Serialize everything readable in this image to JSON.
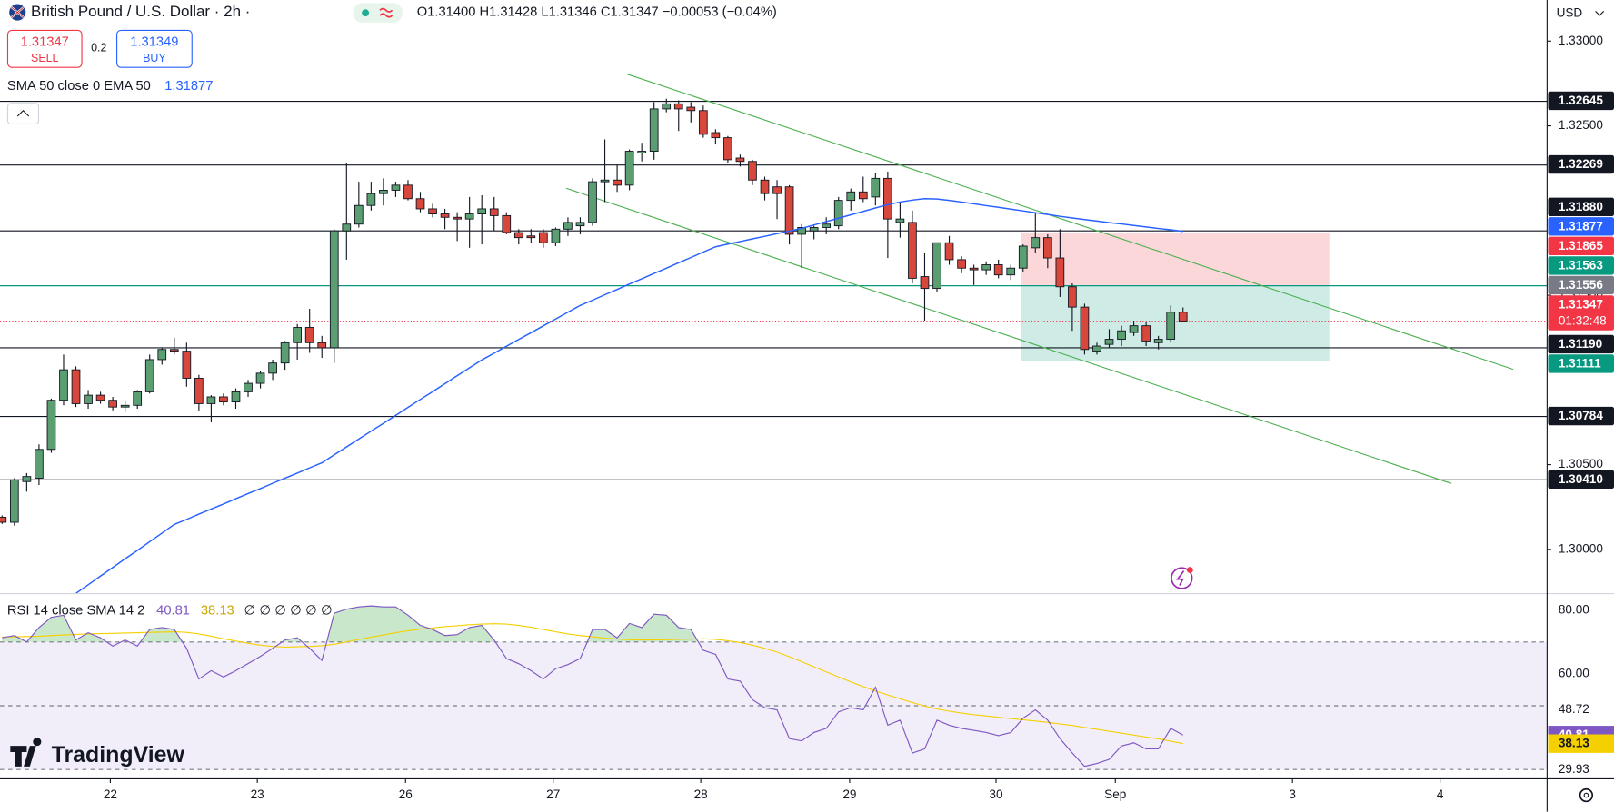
{
  "header": {
    "symbol": "British Pound / U.S. Dollar · 2h ·",
    "ohlc": "O1.31400 H1.31428 L1.31346 C1.31347 −0.00053 (−0.04%)",
    "sell_label": "SELL",
    "spread": 0.2,
    "buy_price": 1.31349,
    "buy_label": "BUY",
    "currency": "USD",
    "indicator": "SMA 50 close 0 EMA 50",
    "rsi_label": "RSI 14 close SMA 14 2",
    "rsi_extra": "∅ ∅ ∅ ∅ ∅ ∅",
    "countdown": "01:32:48",
    "logo": "TradingView"
  },
  "chart_data": {
    "type": "candlestick",
    "up_color": "#5b9e72",
    "down_color": "#d8473b",
    "grid": false,
    "xlim": [
      -0.17,
      125.6
    ],
    "xticks": [
      {
        "value": 8.8,
        "label": "22"
      },
      {
        "value": 20.75,
        "label": "23"
      },
      {
        "value": 32.8,
        "label": "26"
      },
      {
        "value": 44.8,
        "label": "27"
      },
      {
        "value": 56.8,
        "label": "28"
      },
      {
        "value": 68.9,
        "label": "29"
      },
      {
        "value": 80.8,
        "label": "30"
      },
      {
        "value": 90.5,
        "label": "Sep"
      },
      {
        "value": 104.9,
        "label": "3"
      },
      {
        "value": 116.9,
        "label": "4"
      }
    ],
    "ylim": [
      1.297389,
      1.332429
    ],
    "yticks": [
      {
        "value": 1.33,
        "label": "1.33000"
      },
      {
        "value": 1.325,
        "label": "1.32500"
      },
      {
        "value": 1.315,
        "label": "1.31500"
      },
      {
        "value": 1.305,
        "label": "1.30500"
      },
      {
        "value": 1.3,
        "label": "1.30000"
      }
    ],
    "ohlc": [
      [
        1.3019,
        1.302,
        1.3015,
        1.3016
      ],
      [
        1.3016,
        1.3042,
        1.3014,
        1.3041
      ],
      [
        1.304,
        1.3045,
        1.3034,
        1.3043
      ],
      [
        1.3042,
        1.3062,
        1.3038,
        1.3059
      ],
      [
        1.3059,
        1.3089,
        1.3057,
        1.3088
      ],
      [
        1.3088,
        1.3115,
        1.3085,
        1.3106
      ],
      [
        1.3106,
        1.3108,
        1.3084,
        1.3086
      ],
      [
        1.3086,
        1.3094,
        1.3083,
        1.3091
      ],
      [
        1.3091,
        1.3093,
        1.3086,
        1.3088
      ],
      [
        1.3088,
        1.309,
        1.3082,
        1.3084
      ],
      [
        1.3084,
        1.3088,
        1.3081,
        1.3085
      ],
      [
        1.3085,
        1.3094,
        1.3083,
        1.3093
      ],
      [
        1.3093,
        1.3115,
        1.3092,
        1.3112
      ],
      [
        1.3112,
        1.3119,
        1.3109,
        1.3118
      ],
      [
        1.3118,
        1.3125,
        1.3115,
        1.3117
      ],
      [
        1.3117,
        1.3122,
        1.3096,
        1.3101
      ],
      [
        1.3101,
        1.3103,
        1.3082,
        1.3086
      ],
      [
        1.3086,
        1.3091,
        1.3075,
        1.309
      ],
      [
        1.309,
        1.3092,
        1.3085,
        1.3087
      ],
      [
        1.3087,
        1.3095,
        1.3083,
        1.3093
      ],
      [
        1.3093,
        1.31,
        1.309,
        1.3098
      ],
      [
        1.3098,
        1.3105,
        1.3095,
        1.3104
      ],
      [
        1.3104,
        1.3112,
        1.31,
        1.311
      ],
      [
        1.311,
        1.3123,
        1.3106,
        1.3122
      ],
      [
        1.3122,
        1.3133,
        1.3112,
        1.3131
      ],
      [
        1.3131,
        1.3142,
        1.3116,
        1.3122
      ],
      [
        1.3122,
        1.3126,
        1.3113,
        1.3119
      ],
      [
        1.3119,
        1.3189,
        1.311,
        1.3188
      ],
      [
        1.3188,
        1.3228,
        1.3171,
        1.3192
      ],
      [
        1.3192,
        1.3217,
        1.319,
        1.3203
      ],
      [
        1.3203,
        1.3217,
        1.32,
        1.321
      ],
      [
        1.321,
        1.3219,
        1.3203,
        1.3212
      ],
      [
        1.3212,
        1.3217,
        1.3208,
        1.3215
      ],
      [
        1.3215,
        1.3218,
        1.3206,
        1.3207
      ],
      [
        1.3207,
        1.3211,
        1.3199,
        1.3201
      ],
      [
        1.3201,
        1.3204,
        1.3196,
        1.3198
      ],
      [
        1.3198,
        1.3201,
        1.3189,
        1.3196
      ],
      [
        1.3196,
        1.3199,
        1.3182,
        1.3195
      ],
      [
        1.3195,
        1.3208,
        1.3178,
        1.3198
      ],
      [
        1.3198,
        1.3209,
        1.318,
        1.3201
      ],
      [
        1.3201,
        1.3208,
        1.3188,
        1.3197
      ],
      [
        1.3197,
        1.3199,
        1.3186,
        1.3187
      ],
      [
        1.3187,
        1.3189,
        1.318,
        1.3184
      ],
      [
        1.3185,
        1.3189,
        1.3181,
        1.3184
      ],
      [
        1.3187,
        1.3189,
        1.3178,
        1.3181
      ],
      [
        1.3181,
        1.319,
        1.3179,
        1.3189
      ],
      [
        1.3189,
        1.3196,
        1.3185,
        1.3193
      ],
      [
        1.3191,
        1.3196,
        1.3186,
        1.3193
      ],
      [
        1.3193,
        1.3219,
        1.3191,
        1.3217
      ],
      [
        1.3217,
        1.3242,
        1.3205,
        1.3218
      ],
      [
        1.3218,
        1.3227,
        1.3211,
        1.3215
      ],
      [
        1.3215,
        1.3236,
        1.3212,
        1.3235
      ],
      [
        1.3234,
        1.324,
        1.3229,
        1.3235
      ],
      [
        1.3235,
        1.3264,
        1.323,
        1.326
      ],
      [
        1.326,
        1.3266,
        1.3258,
        1.3263
      ],
      [
        1.3263,
        1.3265,
        1.3247,
        1.326
      ],
      [
        1.3261,
        1.3264,
        1.3252,
        1.3259
      ],
      [
        1.3259,
        1.3262,
        1.3243,
        1.3245
      ],
      [
        1.3246,
        1.3248,
        1.3239,
        1.3243
      ],
      [
        1.3243,
        1.3244,
        1.3228,
        1.323
      ],
      [
        1.3231,
        1.3233,
        1.3226,
        1.3229
      ],
      [
        1.3229,
        1.323,
        1.3215,
        1.3218
      ],
      [
        1.3218,
        1.322,
        1.3206,
        1.321
      ],
      [
        1.3214,
        1.3218,
        1.3195,
        1.321
      ],
      [
        1.3214,
        1.3215,
        1.318,
        1.3186
      ],
      [
        1.3186,
        1.3192,
        1.3166,
        1.319
      ],
      [
        1.3188,
        1.3191,
        1.3183,
        1.319
      ],
      [
        1.319,
        1.3196,
        1.3186,
        1.3192
      ],
      [
        1.3191,
        1.3208,
        1.3189,
        1.3206
      ],
      [
        1.3206,
        1.3213,
        1.32,
        1.3211
      ],
      [
        1.3211,
        1.322,
        1.3205,
        1.3207
      ],
      [
        1.3208,
        1.3222,
        1.3203,
        1.3219
      ],
      [
        1.3219,
        1.3223,
        1.3172,
        1.3195
      ],
      [
        1.3193,
        1.3205,
        1.3184,
        1.3195
      ],
      [
        1.3193,
        1.32,
        1.3157,
        1.316
      ],
      [
        1.3161,
        1.3175,
        1.3135,
        1.3154
      ],
      [
        1.3154,
        1.3181,
        1.3152,
        1.3181
      ],
      [
        1.3181,
        1.3185,
        1.3168,
        1.3171
      ],
      [
        1.3171,
        1.3173,
        1.3163,
        1.3166
      ],
      [
        1.3166,
        1.3168,
        1.3156,
        1.3165
      ],
      [
        1.3165,
        1.317,
        1.3162,
        1.3168
      ],
      [
        1.3168,
        1.3171,
        1.316,
        1.3162
      ],
      [
        1.3162,
        1.3168,
        1.3159,
        1.3166
      ],
      [
        1.3166,
        1.318,
        1.3164,
        1.3179
      ],
      [
        1.3178,
        1.3199,
        1.3175,
        1.3184
      ],
      [
        1.3184,
        1.3186,
        1.3166,
        1.3172
      ],
      [
        1.3172,
        1.3189,
        1.3149,
        1.3155
      ],
      [
        1.3155,
        1.3157,
        1.3129,
        1.3143
      ],
      [
        1.3143,
        1.3145,
        1.3115,
        1.3118
      ],
      [
        1.3117,
        1.3122,
        1.3115,
        1.312
      ],
      [
        1.3121,
        1.313,
        1.3119,
        1.3124
      ],
      [
        1.3124,
        1.3132,
        1.312,
        1.3129
      ],
      [
        1.3128,
        1.3135,
        1.3126,
        1.3132
      ],
      [
        1.3132,
        1.3134,
        1.312,
        1.3123
      ],
      [
        1.3122,
        1.3126,
        1.3118,
        1.3124
      ],
      [
        1.3124,
        1.3144,
        1.3122,
        1.314
      ],
      [
        1.314,
        1.31428,
        1.31346,
        1.31347
      ]
    ],
    "ema_color": "#2962ff",
    "ema_values": [
      null,
      null,
      null,
      null,
      null,
      null,
      1.2974,
      1.29791,
      1.29842,
      1.29893,
      1.29944,
      1.29994,
      1.30045,
      1.30096,
      1.30147,
      1.30177,
      1.30208,
      1.30238,
      1.30268,
      1.30299,
      1.30329,
      1.30359,
      1.3039,
      1.3042,
      1.3045,
      1.30481,
      1.30511,
      1.30558,
      1.30604,
      1.30651,
      1.30698,
      1.30744,
      1.30791,
      1.30838,
      1.30885,
      1.30931,
      1.30978,
      1.31025,
      1.31071,
      1.31118,
      1.31158,
      1.31199,
      1.31239,
      1.31279,
      1.31319,
      1.3136,
      1.314,
      1.3144,
      1.31471,
      1.31503,
      1.31534,
      1.31566,
      1.31597,
      1.31629,
      1.3166,
      1.31692,
      1.31723,
      1.31755,
      1.31786,
      1.31802,
      1.31817,
      1.31833,
      1.31848,
      1.31864,
      1.31879,
      1.31895,
      1.31915,
      1.31935,
      1.31955,
      1.31975,
      1.31995,
      1.32015,
      1.32035,
      1.3205,
      1.32062,
      1.3207,
      1.32068,
      1.3206,
      1.3205,
      1.3204,
      1.32029,
      1.32019,
      1.32008,
      1.31998,
      1.31987,
      1.31977,
      1.31966,
      1.31956,
      1.31947,
      1.31938,
      1.31929,
      1.31921,
      1.31912,
      1.31903,
      1.31894,
      1.31886,
      1.31877
    ],
    "last_color": "#f23645",
    "price_labels": [
      {
        "value": 1.32645,
        "color": "#131722",
        "line_color": "#131722"
      },
      {
        "value": 1.32269,
        "color": "#131722",
        "line_color": "#131722"
      },
      {
        "value": 1.3188,
        "label": "1.31880",
        "color": "#131722",
        "line_color": "#131722"
      },
      {
        "value": 1.31865,
        "color": "#f23645"
      },
      {
        "value": 1.31563,
        "color": "#089981"
      },
      {
        "value": 1.31556,
        "color": "#787b86",
        "line_color": "#089981"
      },
      {
        "value": 1.3119,
        "label": "1.31190",
        "color": "#131722",
        "line_color": "#131722"
      },
      {
        "value": 1.31111,
        "color": "#089981"
      },
      {
        "value": 1.30784,
        "color": "#131722",
        "line_color": "#131722"
      },
      {
        "value": 1.3041,
        "label": "1.30410",
        "color": "#131722",
        "line_color": "#131722"
      }
    ],
    "position": {
      "entry": 1.31556,
      "stop": 1.31865,
      "target": 1.31111,
      "start": 82.8,
      "end": 107.9
    },
    "rsi": {
      "color": "#7e57c2",
      "sma_color": "#f5d000",
      "ylim": [
        27.1,
        85.16
      ],
      "yticks": [
        {
          "value": 80,
          "label": "80.00"
        },
        {
          "value": 60,
          "label": "60.00"
        },
        48.72,
        29.93
      ],
      "levels": [
        70,
        50,
        30
      ],
      "values": [
        71.3,
        72,
        70,
        74.5,
        77.7,
        78.4,
        70.6,
        72.9,
        71.3,
        68.7,
        70.6,
        68.7,
        73.9,
        74.5,
        73.9,
        68,
        58.4,
        61,
        59,
        61,
        63.2,
        65.5,
        68,
        70.6,
        71.3,
        68,
        64.2,
        79,
        80.3,
        81,
        81.3,
        81,
        81,
        78.4,
        75.2,
        73.9,
        72,
        72.3,
        74.5,
        75.2,
        70.6,
        64.8,
        63.2,
        61,
        58.4,
        61.6,
        62.9,
        64.8,
        73.9,
        73.9,
        71.3,
        75.8,
        74.5,
        78.7,
        78.4,
        74.5,
        73.9,
        67.4,
        66.1,
        58.4,
        57.7,
        51.9,
        49.4,
        48.7,
        39.7,
        39,
        41.6,
        42.9,
        48.1,
        49.4,
        48.7,
        55.8,
        43.9,
        45.5,
        35.2,
        36.5,
        45.5,
        43.9,
        42.9,
        42.3,
        41.6,
        40.6,
        41.6,
        46.1,
        48.7,
        45.5,
        39.7,
        35.2,
        31,
        31.9,
        33.2,
        37.4,
        38.4,
        36.5,
        36.5,
        42.9,
        40.81
      ],
      "sma": [
        71.5,
        71.6,
        71.7,
        71.8,
        72,
        72.2,
        72.4,
        72.5,
        72.6,
        72.7,
        72.8,
        72.9,
        73,
        73.1,
        73.2,
        73,
        72.5,
        71.8,
        71,
        70.3,
        69.6,
        69,
        68.6,
        68.4,
        68.5,
        68.6,
        68.8,
        69.3,
        70,
        70.8,
        71.5,
        72.2,
        72.9,
        73.5,
        74,
        74.4,
        74.8,
        75.1,
        75.4,
        75.6,
        75.7,
        75.6,
        75.2,
        74.6,
        73.9,
        73.2,
        72.5,
        72,
        71.6,
        71.2,
        70.9,
        70.7,
        70.6,
        70.6,
        70.7,
        70.8,
        70.9,
        71,
        70.8,
        70.4,
        69.8,
        69,
        68,
        66.8,
        65.4,
        63.8,
        62.2,
        60.6,
        59,
        57.5,
        56,
        54.6,
        53.4,
        52.2,
        51,
        49.9,
        49,
        48.3,
        47.7,
        47.2,
        46.8,
        46.4,
        46,
        45.6,
        45.2,
        44.8,
        44.3,
        43.8,
        43.2,
        42.6,
        42,
        41.4,
        40.8,
        40.2,
        39.6,
        38.9,
        38.13
      ]
    }
  }
}
